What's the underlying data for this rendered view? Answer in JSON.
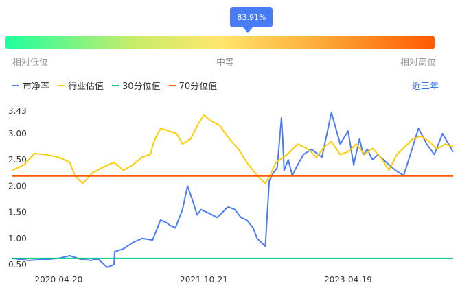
{
  "percentile": {
    "label": "83.91%",
    "value": 0.8391
  },
  "scale": {
    "low": "相对低位",
    "mid": "中等",
    "high": "相对高位"
  },
  "legend": [
    {
      "label": "市净率",
      "color": "#4a7bf7"
    },
    {
      "label": "行业估值",
      "color": "#ffcc00"
    },
    {
      "label": "30分位值",
      "color": "#00c77f"
    },
    {
      "label": "70分位值",
      "color": "#ff5a00"
    }
  ],
  "range_button": "近三年",
  "chart_data": {
    "type": "line",
    "x_ticks": [
      "2020-04-20",
      "2021-10-21",
      "2023-04-19"
    ],
    "y_ticks": [
      "3.43",
      "3.00",
      "2.50",
      "2.00",
      "1.50",
      "1.00",
      "0.50"
    ],
    "ylim": [
      0.5,
      3.43
    ],
    "xlim": [
      "2019-10-28",
      "2024-05-20"
    ],
    "series": [
      {
        "name": "市净率",
        "color": "#4a7bf7",
        "x": [
          "2019-10-28",
          "2019-12-28",
          "2020-03-02",
          "2020-04-20",
          "2020-06-01",
          "2020-07-15",
          "2020-08-20",
          "2020-09-15",
          "2020-10-20",
          "2020-11-15",
          "2020-11-18",
          "2020-12-20",
          "2021-01-25",
          "2021-03-01",
          "2021-04-10",
          "2021-05-10",
          "2021-06-01",
          "2021-06-15",
          "2021-07-05",
          "2021-08-01",
          "2021-08-20",
          "2021-09-10",
          "2021-09-25",
          "2021-10-10",
          "2021-11-01",
          "2021-12-10",
          "2022-01-20",
          "2022-02-15",
          "2022-03-10",
          "2022-04-01",
          "2022-04-25",
          "2022-05-10",
          "2022-06-10",
          "2022-06-25",
          "2022-07-10",
          "2022-07-25",
          "2022-08-10",
          "2022-08-15",
          "2022-08-20",
          "2022-09-05",
          "2022-09-20",
          "2022-10-10",
          "2022-11-01",
          "2022-12-01",
          "2023-01-10",
          "2023-02-15",
          "2023-03-20",
          "2023-04-19",
          "2023-05-10",
          "2023-06-01",
          "2023-06-15",
          "2023-07-01",
          "2023-07-20",
          "2023-08-10",
          "2023-09-10",
          "2023-10-15",
          "2023-11-15",
          "2023-12-10",
          "2024-01-10",
          "2024-02-10",
          "2024-03-10",
          "2024-04-10",
          "2024-05-20"
        ],
        "y": [
          0.62,
          0.58,
          0.6,
          0.62,
          0.67,
          0.6,
          0.58,
          0.61,
          0.45,
          0.5,
          0.75,
          0.8,
          0.92,
          1.0,
          0.97,
          1.35,
          1.3,
          1.25,
          1.2,
          1.55,
          2.0,
          1.7,
          1.45,
          1.55,
          1.5,
          1.4,
          1.6,
          1.55,
          1.4,
          1.35,
          1.2,
          1.0,
          0.85,
          2.1,
          2.25,
          2.35,
          3.3,
          2.9,
          2.3,
          2.5,
          2.2,
          2.4,
          2.6,
          2.7,
          2.55,
          3.4,
          2.8,
          3.05,
          2.4,
          2.9,
          2.6,
          2.7,
          2.5,
          2.6,
          2.45,
          2.3,
          2.2,
          2.6,
          3.1,
          2.8,
          2.6,
          3.0,
          2.65
        ]
      },
      {
        "name": "行业估值",
        "color": "#ffcc00",
        "x": [
          "2019-10-28",
          "2019-12-10",
          "2020-01-20",
          "2020-03-01",
          "2020-04-20",
          "2020-06-01",
          "2020-06-20",
          "2020-07-20",
          "2020-08-25",
          "2020-10-01",
          "2020-11-15",
          "2020-12-20",
          "2021-01-25",
          "2021-03-01",
          "2021-04-01",
          "2021-04-15",
          "2021-05-10",
          "2021-06-10",
          "2021-07-10",
          "2021-08-01",
          "2021-09-01",
          "2021-10-01",
          "2021-10-21",
          "2021-11-15",
          "2021-12-20",
          "2022-01-25",
          "2022-03-01",
          "2022-04-01",
          "2022-05-10",
          "2022-06-10",
          "2022-06-28",
          "2022-07-20",
          "2022-09-01",
          "2022-10-10",
          "2022-11-20",
          "2022-12-20",
          "2023-01-20",
          "2023-02-15",
          "2023-03-20",
          "2023-04-19",
          "2023-05-20",
          "2023-06-20",
          "2023-07-20",
          "2023-08-20",
          "2023-09-20",
          "2023-10-20",
          "2023-11-20",
          "2023-12-20",
          "2024-01-20",
          "2024-02-20",
          "2024-03-20",
          "2024-04-20",
          "2024-05-20"
        ],
        "y": [
          2.3,
          2.4,
          2.62,
          2.6,
          2.55,
          2.45,
          2.2,
          2.05,
          2.25,
          2.35,
          2.45,
          2.3,
          2.4,
          2.55,
          2.6,
          2.85,
          3.1,
          3.05,
          3.0,
          2.8,
          2.9,
          3.2,
          3.35,
          3.25,
          3.15,
          2.9,
          2.7,
          2.45,
          2.2,
          2.05,
          2.2,
          2.45,
          2.6,
          2.8,
          2.7,
          2.55,
          2.75,
          2.85,
          2.6,
          2.65,
          2.8,
          2.6,
          2.72,
          2.55,
          2.3,
          2.6,
          2.75,
          2.9,
          2.95,
          2.85,
          2.7,
          2.8,
          2.75
        ]
      }
    ],
    "reference_lines": [
      {
        "name": "70分位值",
        "value": 2.19,
        "color": "#ff5a00"
      },
      {
        "name": "30分位值",
        "value": 0.62,
        "color": "#00c77f"
      }
    ]
  }
}
